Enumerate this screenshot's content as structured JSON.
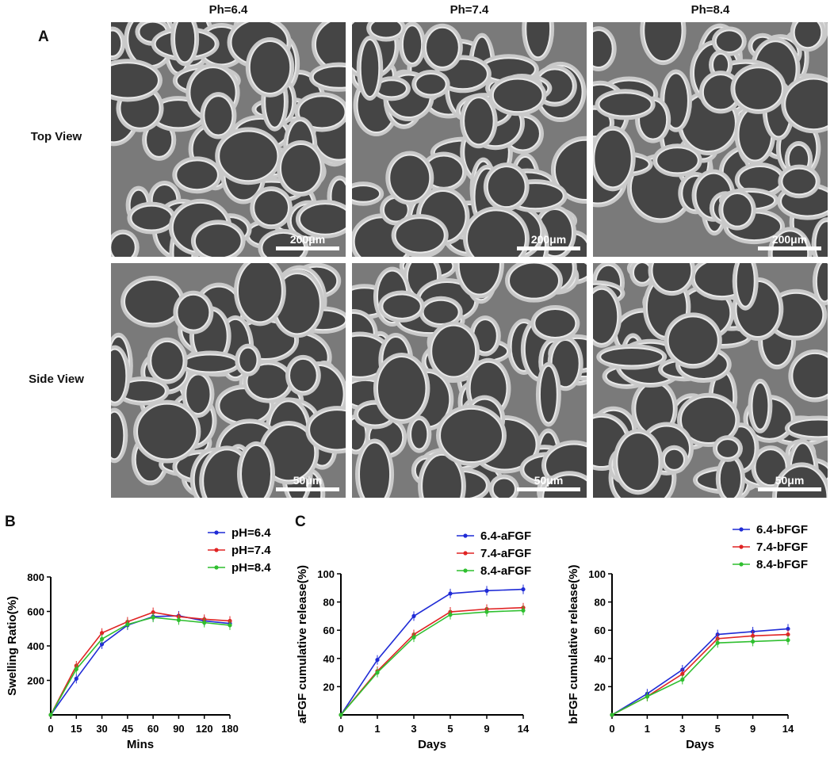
{
  "panel_a": {
    "letter": "A",
    "columns": [
      "Ph=6.4",
      "Ph=7.4",
      "Ph=8.4"
    ],
    "rows": [
      {
        "label": "Top View",
        "scale": "200μm"
      },
      {
        "label": "Side View",
        "scale": "50μm"
      }
    ]
  },
  "panel_b": {
    "letter": "B"
  },
  "panel_c": {
    "letter": "C"
  },
  "chart_data": [
    {
      "type": "line",
      "title": "",
      "xlabel": "Mins",
      "ylabel": "Swelling Ratio(%)",
      "categories": [
        "0",
        "15",
        "30",
        "45",
        "60",
        "90",
        "120",
        "180"
      ],
      "ylim": [
        0,
        800
      ],
      "yticks": [
        200,
        400,
        600,
        800
      ],
      "grid": false,
      "legend": "top-right",
      "series": [
        {
          "name": "pH=6.4",
          "color": "#1f2bd6",
          "values": [
            0,
            210,
            410,
            520,
            570,
            575,
            545,
            530
          ]
        },
        {
          "name": "pH=7.4",
          "color": "#e02424",
          "values": [
            0,
            285,
            475,
            540,
            595,
            570,
            555,
            545
          ]
        },
        {
          "name": "pH=8.4",
          "color": "#2fbf2f",
          "values": [
            0,
            265,
            440,
            525,
            565,
            550,
            535,
            520
          ]
        }
      ]
    },
    {
      "type": "line",
      "title": "",
      "xlabel": "Days",
      "ylabel": "aFGF cumulative release(%)",
      "categories": [
        "0",
        "1",
        "3",
        "5",
        "9",
        "14"
      ],
      "ylim": [
        0,
        100
      ],
      "yticks": [
        20,
        40,
        60,
        80,
        100
      ],
      "grid": false,
      "legend": "top-right",
      "series": [
        {
          "name": "6.4-aFGF",
          "color": "#1f2bd6",
          "values": [
            0,
            39,
            70,
            86,
            88,
            89
          ]
        },
        {
          "name": "7.4-aFGF",
          "color": "#e02424",
          "values": [
            0,
            31,
            57,
            73,
            75,
            76
          ]
        },
        {
          "name": "8.4-aFGF",
          "color": "#2fbf2f",
          "values": [
            0,
            30,
            55,
            71,
            73,
            74
          ]
        }
      ]
    },
    {
      "type": "line",
      "title": "",
      "xlabel": "Days",
      "ylabel": "bFGF cumulative release(%)",
      "categories": [
        "0",
        "1",
        "3",
        "5",
        "9",
        "14"
      ],
      "ylim": [
        0,
        100
      ],
      "yticks": [
        20,
        40,
        60,
        80,
        100
      ],
      "grid": false,
      "legend": "top-right",
      "series": [
        {
          "name": "6.4-bFGF",
          "color": "#1f2bd6",
          "values": [
            0,
            15,
            32,
            57,
            59,
            61
          ]
        },
        {
          "name": "7.4-bFGF",
          "color": "#e02424",
          "values": [
            0,
            13,
            29,
            54,
            56,
            57
          ]
        },
        {
          "name": "8.4-bFGF",
          "color": "#2fbf2f",
          "values": [
            0,
            13,
            25,
            51,
            52,
            53
          ]
        }
      ]
    }
  ]
}
